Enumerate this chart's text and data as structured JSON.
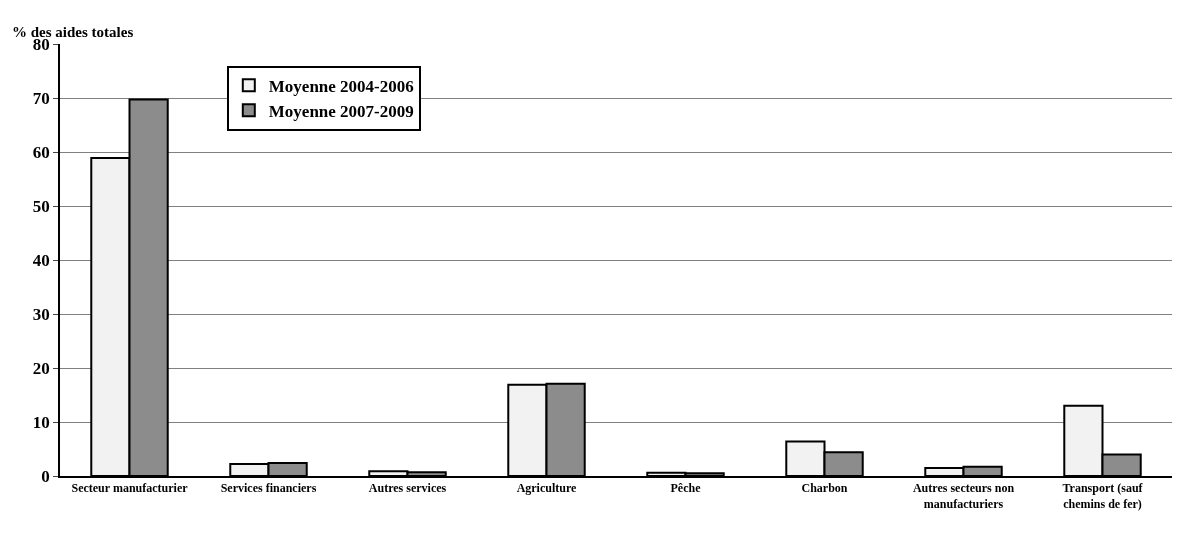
{
  "chart_data": {
    "type": "bar",
    "ylabel": "% des aides totales",
    "categories": [
      "Secteur manufacturier",
      "Services financiers",
      "Autres services",
      "Agriculture",
      "Pêche",
      "Charbon",
      "Autres secteurs non manufacturiers",
      "Transport (sauf chemins de fer)"
    ],
    "series": [
      {
        "name": "Moyenne 2004-2006",
        "color": "#f2f2f2",
        "values": [
          58.9,
          2.2,
          0.9,
          16.9,
          0.6,
          6.4,
          1.5,
          13.0
        ]
      },
      {
        "name": "Moyenne 2007-2009",
        "color": "#8c8c8c",
        "values": [
          69.7,
          2.4,
          0.7,
          17.1,
          0.5,
          4.4,
          1.7,
          4.0
        ]
      }
    ],
    "ylim": [
      0,
      80
    ],
    "yticks": [
      0,
      10,
      20,
      30,
      40,
      50,
      60,
      70,
      80
    ],
    "grid": "y",
    "legend": "top left"
  }
}
